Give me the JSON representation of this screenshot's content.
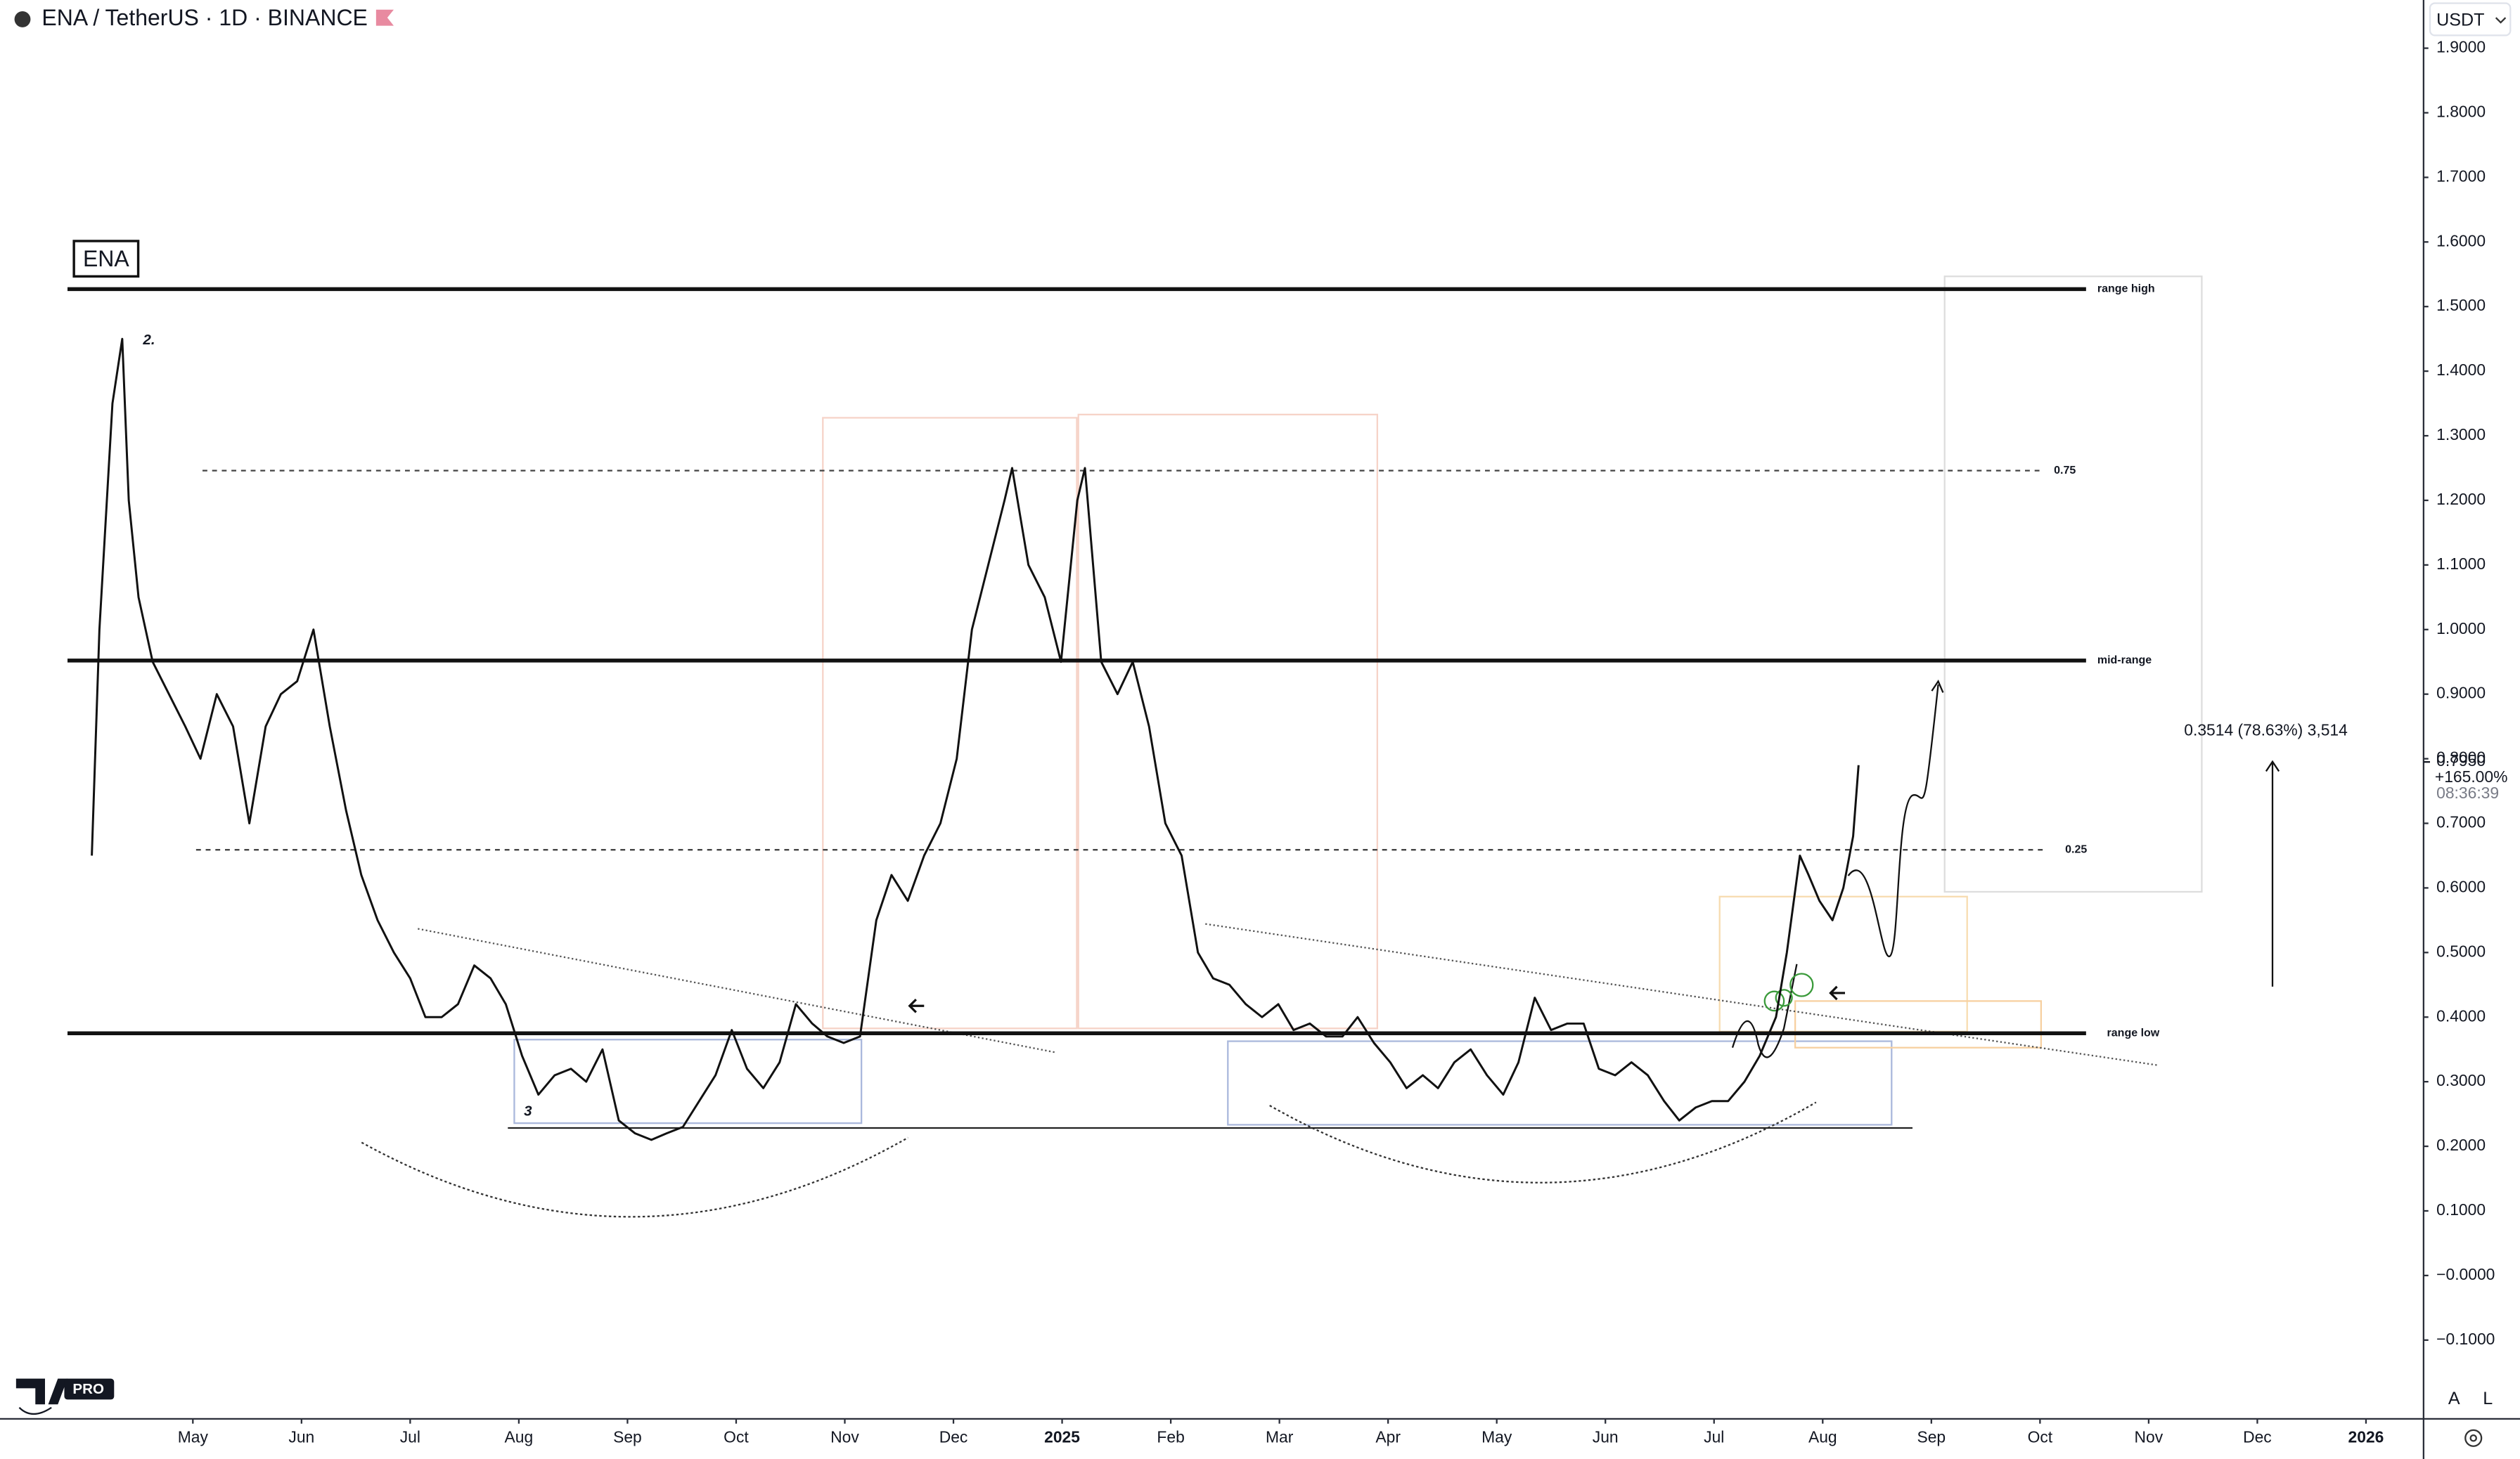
{
  "chart_data": {
    "type": "line",
    "title": "ENA / TetherUS · 1D · BINANCE",
    "symbol_label": "ENA",
    "currency": "USDT",
    "logo_text": "PRO",
    "wave_labels": [
      "2.",
      "3"
    ],
    "measure_label": "0.3514 (78.63%) 3,514",
    "last_price": {
      "value": 0.795,
      "label": "0.7950"
    },
    "change_label": "+165.00%",
    "countdown": "08:36:39",
    "scale_buttons": [
      "A",
      "L"
    ],
    "color": "#111111",
    "grid": false,
    "x": [
      -0.93,
      -0.86,
      -0.74,
      -0.65,
      -0.59,
      -0.5,
      -0.37,
      -0.22,
      -0.07,
      0.07,
      0.22,
      0.37,
      0.52,
      0.67,
      0.81,
      0.96,
      1.11,
      1.26,
      1.41,
      1.55,
      1.7,
      1.85,
      2.0,
      2.14,
      2.29,
      2.44,
      2.59,
      2.74,
      2.88,
      3.03,
      3.18,
      3.33,
      3.48,
      3.62,
      3.77,
      3.92,
      4.07,
      4.22,
      4.36,
      4.51,
      4.66,
      4.81,
      4.96,
      5.1,
      5.25,
      5.4,
      5.55,
      5.7,
      5.84,
      5.99,
      6.14,
      6.29,
      6.43,
      6.58,
      6.73,
      6.88,
      7.03,
      7.17,
      7.32,
      7.47,
      7.54,
      7.69,
      7.84,
      7.99,
      8.14,
      8.21,
      8.36,
      8.51,
      8.65,
      8.8,
      8.95,
      9.1,
      9.25,
      9.39,
      9.54,
      9.69,
      9.84,
      9.99,
      10.13,
      10.28,
      10.43,
      10.58,
      10.72,
      10.87,
      11.02,
      11.17,
      11.32,
      11.46,
      11.61,
      11.76,
      11.91,
      12.06,
      12.2,
      12.35,
      12.5,
      12.65,
      12.8,
      12.94,
      13.09,
      13.24,
      13.39,
      13.54,
      13.68,
      13.83,
      13.98,
      14.13,
      14.28,
      14.42,
      14.57,
      14.67,
      14.79,
      14.87,
      14.97,
      15.09,
      15.19,
      15.28,
      15.33
    ],
    "values": [
      0.65,
      1.0,
      1.35,
      1.45,
      1.2,
      1.05,
      0.95,
      0.9,
      0.85,
      0.8,
      0.9,
      0.85,
      0.7,
      0.85,
      0.9,
      0.92,
      1.0,
      0.85,
      0.72,
      0.62,
      0.55,
      0.5,
      0.46,
      0.4,
      0.4,
      0.42,
      0.48,
      0.46,
      0.42,
      0.34,
      0.28,
      0.31,
      0.32,
      0.3,
      0.35,
      0.24,
      0.22,
      0.21,
      0.22,
      0.23,
      0.27,
      0.31,
      0.38,
      0.32,
      0.29,
      0.33,
      0.42,
      0.39,
      0.37,
      0.36,
      0.37,
      0.55,
      0.62,
      0.58,
      0.65,
      0.7,
      0.8,
      1.0,
      1.1,
      1.2,
      1.25,
      1.1,
      1.05,
      0.95,
      1.2,
      1.25,
      0.95,
      0.9,
      0.95,
      0.85,
      0.7,
      0.65,
      0.5,
      0.46,
      0.45,
      0.42,
      0.4,
      0.42,
      0.38,
      0.39,
      0.37,
      0.37,
      0.4,
      0.36,
      0.33,
      0.29,
      0.31,
      0.29,
      0.33,
      0.35,
      0.31,
      0.28,
      0.33,
      0.43,
      0.38,
      0.39,
      0.39,
      0.32,
      0.31,
      0.33,
      0.31,
      0.27,
      0.24,
      0.26,
      0.27,
      0.27,
      0.3,
      0.34,
      0.4,
      0.5,
      0.65,
      0.62,
      0.58,
      0.55,
      0.6,
      0.68,
      0.79
    ],
    "levels": [
      {
        "label": "range high",
        "value": 1.527,
        "style": "solid"
      },
      {
        "label": "0.75",
        "value": 1.246,
        "style": "dashed"
      },
      {
        "label": "mid-range",
        "value": 0.952,
        "style": "solid"
      },
      {
        "label": "0.25",
        "value": 0.659,
        "style": "dashed"
      },
      {
        "label": "range low",
        "value": 0.375,
        "style": "solid"
      }
    ],
    "xlim": [
      -1.775,
      20.53
    ],
    "ylim": [
      -0.2219,
      1.9746
    ],
    "xticks": [
      {
        "value": 0,
        "label": "May"
      },
      {
        "value": 1,
        "label": "Jun"
      },
      {
        "value": 2,
        "label": "Jul"
      },
      {
        "value": 3,
        "label": "Aug"
      },
      {
        "value": 4,
        "label": "Sep"
      },
      {
        "value": 5,
        "label": "Oct"
      },
      {
        "value": 6,
        "label": "Nov"
      },
      {
        "value": 7,
        "label": "Dec"
      },
      {
        "value": 8,
        "label": "2025"
      },
      {
        "value": 9,
        "label": "Feb"
      },
      {
        "value": 10,
        "label": "Mar"
      },
      {
        "value": 11,
        "label": "Apr"
      },
      {
        "value": 12,
        "label": "May"
      },
      {
        "value": 13,
        "label": "Jun"
      },
      {
        "value": 14,
        "label": "Jul"
      },
      {
        "value": 15,
        "label": "Aug"
      },
      {
        "value": 16,
        "label": "Sep"
      },
      {
        "value": 17,
        "label": "Oct"
      },
      {
        "value": 18,
        "label": "Nov"
      },
      {
        "value": 19,
        "label": "Dec"
      },
      {
        "value": 20,
        "label": "2026"
      }
    ],
    "yticks": [
      {
        "value": 1.9,
        "label": "1.9000"
      },
      {
        "value": 1.8,
        "label": "1.8000"
      },
      {
        "value": 1.7,
        "label": "1.7000"
      },
      {
        "value": 1.6,
        "label": "1.6000"
      },
      {
        "value": 1.5,
        "label": "1.5000"
      },
      {
        "value": 1.4,
        "label": "1.4000"
      },
      {
        "value": 1.3,
        "label": "1.3000"
      },
      {
        "value": 1.2,
        "label": "1.2000"
      },
      {
        "value": 1.1,
        "label": "1.1000"
      },
      {
        "value": 1.0,
        "label": "1.0000"
      },
      {
        "value": 0.9,
        "label": "0.9000"
      },
      {
        "value": 0.8,
        "label": "0.8000"
      },
      {
        "value": 0.7,
        "label": "0.7000"
      },
      {
        "value": 0.6,
        "label": "0.6000"
      },
      {
        "value": 0.5,
        "label": "0.5000"
      },
      {
        "value": 0.4,
        "label": "0.4000"
      },
      {
        "value": 0.3,
        "label": "0.3000"
      },
      {
        "value": 0.2,
        "label": "0.2000"
      },
      {
        "value": 0.1,
        "label": "0.1000"
      },
      {
        "value": 0,
        "label": "−0.0000"
      },
      {
        "value": -0.1,
        "label": "−0.1000"
      }
    ]
  }
}
